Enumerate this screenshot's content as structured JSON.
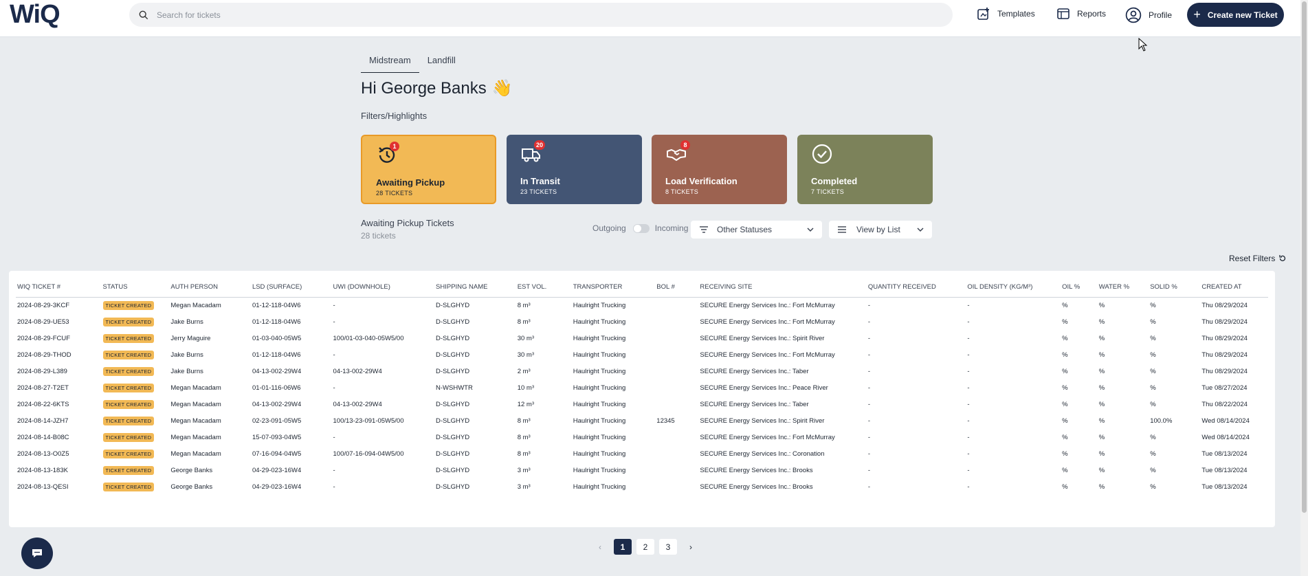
{
  "header": {
    "logo": "WiQ",
    "search_placeholder": "Search for tickets",
    "nav": {
      "templates": "Templates",
      "reports": "Reports",
      "profile": "Profile"
    },
    "create_button": "Create new Ticket"
  },
  "tabs": [
    "Midstream",
    "Landfill"
  ],
  "greeting": "Hi George Banks",
  "greeting_emoji": "👋",
  "filters_title": "Filters/Highlights",
  "cards": [
    {
      "title": "Awaiting Pickup",
      "sub": "28 TICKETS",
      "badge": "1",
      "icon": "history-icon"
    },
    {
      "title": "In Transit",
      "sub": "23 TICKETS",
      "badge": "20",
      "icon": "truck-icon"
    },
    {
      "title": "Load Verification",
      "sub": "8 TICKETS",
      "badge": "8",
      "icon": "handshake-icon"
    },
    {
      "title": "Completed",
      "sub": "7 TICKETS",
      "badge": "",
      "icon": "check-circle-icon"
    }
  ],
  "section": {
    "title": "Awaiting Pickup Tickets",
    "sub": "28 tickets",
    "outgoing": "Outgoing",
    "incoming": "Incoming",
    "status_dropdown": "Other Statuses",
    "view_dropdown": "View by List",
    "reset": "Reset Filters"
  },
  "table": {
    "headers": [
      "WIQ TICKET #",
      "STATUS",
      "AUTH PERSON",
      "LSD (SURFACE)",
      "UWI (DOWNHOLE)",
      "SHIPPING NAME",
      "EST VOL.",
      "TRANSPORTER",
      "BOL #",
      "RECEIVING SITE",
      "QUANTITY RECEIVED",
      "OIL DENSITY (KG/M³)",
      "OIL %",
      "WATER %",
      "SOLID %",
      "CREATED AT"
    ],
    "rows": [
      [
        "2024-08-29-3KCF",
        "TICKET CREATED",
        "Megan Macadam",
        "01-12-118-04W6",
        "-",
        "D-SLGHYD",
        "8 m³",
        "Haulright Trucking",
        "",
        "SECURE Energy Services Inc.: Fort McMurray",
        "-",
        "-",
        "%",
        "%",
        "%",
        "Thu 08/29/2024"
      ],
      [
        "2024-08-29-UE53",
        "TICKET CREATED",
        "Jake Burns",
        "01-12-118-04W6",
        "-",
        "D-SLGHYD",
        "8 m³",
        "Haulright Trucking",
        "",
        "SECURE Energy Services Inc.: Fort McMurray",
        "-",
        "-",
        "%",
        "%",
        "%",
        "Thu 08/29/2024"
      ],
      [
        "2024-08-29-FCUF",
        "TICKET CREATED",
        "Jerry Maguire",
        "01-03-040-05W5",
        "100/01-03-040-05W5/00",
        "D-SLGHYD",
        "30 m³",
        "Haulright Trucking",
        "",
        "SECURE Energy Services Inc.: Spirit River",
        "-",
        "-",
        "%",
        "%",
        "%",
        "Thu 08/29/2024"
      ],
      [
        "2024-08-29-THOD",
        "TICKET CREATED",
        "Jake Burns",
        "01-12-118-04W6",
        "-",
        "D-SLGHYD",
        "30 m³",
        "Haulright Trucking",
        "",
        "SECURE Energy Services Inc.: Fort McMurray",
        "-",
        "-",
        "%",
        "%",
        "%",
        "Thu 08/29/2024"
      ],
      [
        "2024-08-29-L389",
        "TICKET CREATED",
        "Jake Burns",
        "04-13-002-29W4",
        "04-13-002-29W4",
        "D-SLGHYD",
        "2 m³",
        "Haulright Trucking",
        "",
        "SECURE Energy Services Inc.: Taber",
        "-",
        "-",
        "%",
        "%",
        "%",
        "Thu 08/29/2024"
      ],
      [
        "2024-08-27-T2ET",
        "TICKET CREATED",
        "Megan Macadam",
        "01-01-116-06W6",
        "-",
        "N-WSHWTR",
        "10 m³",
        "Haulright Trucking",
        "",
        "SECURE Energy Services Inc.: Peace River",
        "-",
        "-",
        "%",
        "%",
        "%",
        "Tue 08/27/2024"
      ],
      [
        "2024-08-22-6KTS",
        "TICKET CREATED",
        "Megan Macadam",
        "04-13-002-29W4",
        "04-13-002-29W4",
        "D-SLGHYD",
        "12 m³",
        "Haulright Trucking",
        "",
        "SECURE Energy Services Inc.: Taber",
        "-",
        "-",
        "%",
        "%",
        "%",
        "Thu 08/22/2024"
      ],
      [
        "2024-08-14-JZH7",
        "TICKET CREATED",
        "Megan Macadam",
        "02-23-091-05W5",
        "100/13-23-091-05W5/00",
        "D-SLGHYD",
        "8 m³",
        "Haulright Trucking",
        "12345",
        "SECURE Energy Services Inc.: Spirit River",
        "-",
        "-",
        "%",
        "%",
        "100.0%",
        "Wed 08/14/2024"
      ],
      [
        "2024-08-14-B08C",
        "TICKET CREATED",
        "Megan Macadam",
        "15-07-093-04W5",
        "-",
        "D-SLGHYD",
        "8 m³",
        "Haulright Trucking",
        "",
        "SECURE Energy Services Inc.: Fort McMurray",
        "-",
        "-",
        "%",
        "%",
        "%",
        "Wed 08/14/2024"
      ],
      [
        "2024-08-13-O0Z5",
        "TICKET CREATED",
        "Megan Macadam",
        "07-16-094-04W5",
        "100/07-16-094-04W5/00",
        "D-SLGHYD",
        "8 m³",
        "Haulright Trucking",
        "",
        "SECURE Energy Services Inc.: Coronation",
        "-",
        "-",
        "%",
        "%",
        "%",
        "Tue 08/13/2024"
      ],
      [
        "2024-08-13-183K",
        "TICKET CREATED",
        "George Banks",
        "04-29-023-16W4",
        "-",
        "D-SLGHYD",
        "3 m³",
        "Haulright Trucking",
        "",
        "SECURE Energy Services Inc.: Brooks",
        "-",
        "-",
        "%",
        "%",
        "%",
        "Tue 08/13/2024"
      ],
      [
        "2024-08-13-QESI",
        "TICKET CREATED",
        "George Banks",
        "04-29-023-16W4",
        "-",
        "D-SLGHYD",
        "3 m³",
        "Haulright Trucking",
        "",
        "SECURE Energy Services Inc.: Brooks",
        "-",
        "-",
        "%",
        "%",
        "%",
        "Tue 08/13/2024"
      ]
    ]
  },
  "pagination": {
    "prev": "‹",
    "pages": [
      "1",
      "2",
      "3"
    ],
    "current": "1",
    "next": "›"
  },
  "colors": {
    "brand_navy": "#1b2a4a",
    "awaiting": "#f2b955",
    "transit": "#435574",
    "verification": "#9c6250",
    "completed": "#7c825a",
    "badge": "#e03131"
  }
}
